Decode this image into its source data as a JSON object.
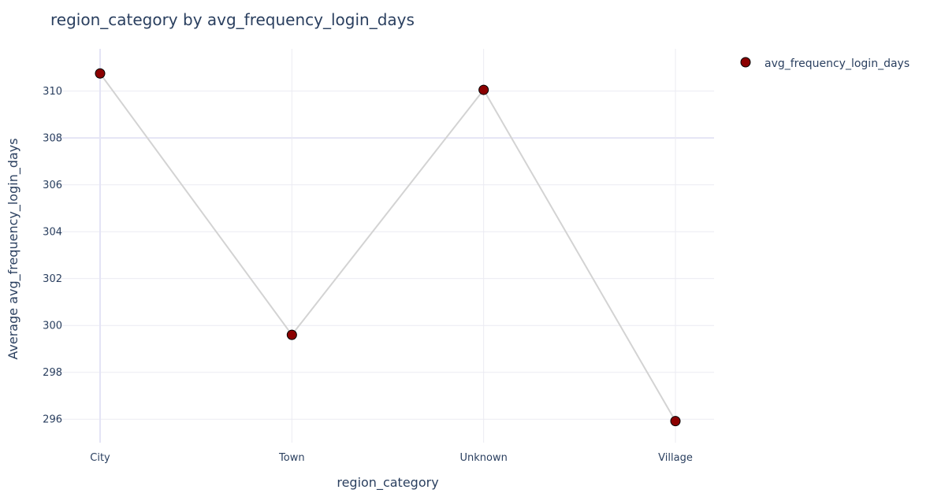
{
  "chart_data": {
    "type": "line",
    "title": "region_category by avg_frequency_login_days",
    "xlabel": "region_category",
    "ylabel": "Average avg_frequency_login_days",
    "categories": [
      "City",
      "Town",
      "Unknown",
      "Village"
    ],
    "series": [
      {
        "name": "avg_frequency_login_days",
        "values": [
          310.75,
          299.6,
          310.05,
          295.92
        ],
        "line_color": "#d3d3d3",
        "marker_color": "#8b0000",
        "marker_edge_color": "#000000"
      }
    ],
    "yticks": [
      296,
      298,
      300,
      302,
      304,
      306,
      308,
      310
    ],
    "ylim": [
      295.0,
      311.8
    ],
    "grid": true,
    "highlight_gridline": 308,
    "legend_position": "top-right",
    "colors": {
      "text": "#2a3f5f",
      "grid": "#ebebf2",
      "highlight_grid": "#e4e4f5",
      "background": "#ffffff"
    }
  }
}
